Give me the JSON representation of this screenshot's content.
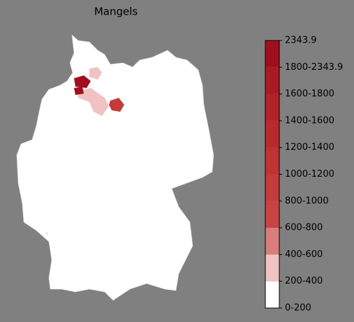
{
  "title": "Mangels",
  "colorbar": {
    "labels": [
      "0-200",
      "200-400",
      "400-600",
      "600-800",
      "800-1000",
      "1000-1200",
      "1200-1400",
      "1400-1600",
      "1600-1800",
      "1800-2343.9",
      "2343.9"
    ],
    "colors": [
      "#ffffff",
      "#f0c2c2",
      "#d97e7e",
      "#c84444",
      "#c43b3b",
      "#bf3333",
      "#b92a2e",
      "#b22329",
      "#aa1a25",
      "#a10f1f"
    ]
  }
}
